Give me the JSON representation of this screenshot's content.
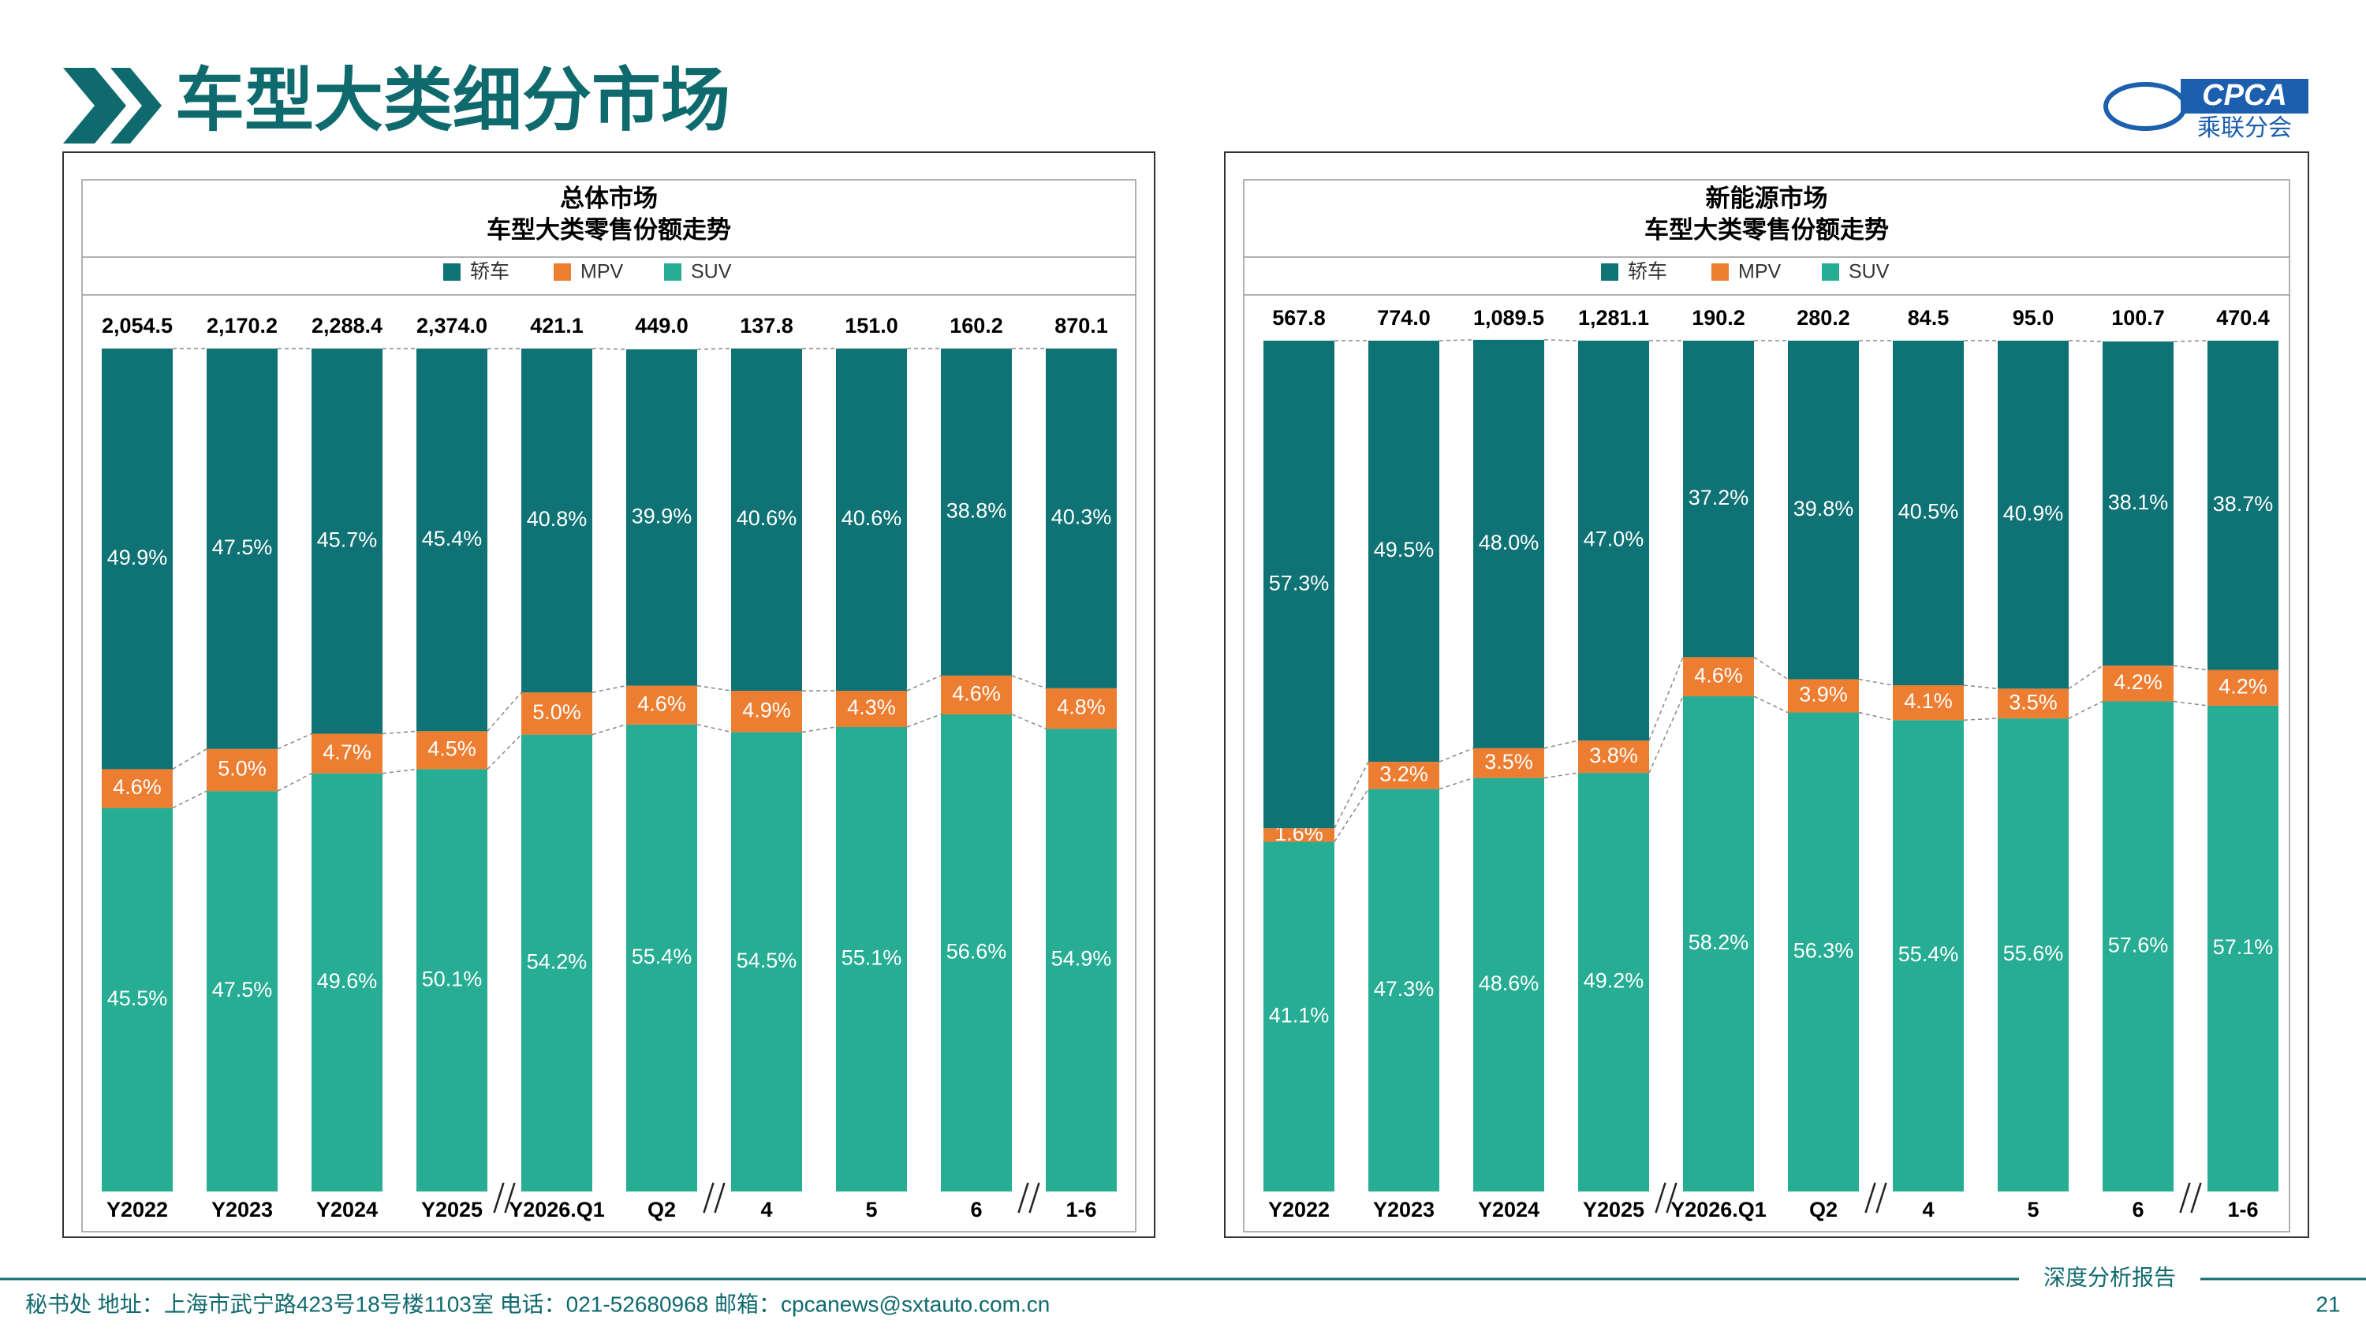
{
  "header": {
    "title": "车型大类细分市场",
    "logo": "CPCA",
    "logo_sub": "乘联分会"
  },
  "footer": {
    "text": "秘书处   地址：上海市武宁路423号18号楼1103室   电话：021-52680968   邮箱：cpcanews@sxtauto.com.cn",
    "tag": "深度分析报告",
    "page": "21"
  },
  "chart_data": [
    {
      "type": "stacked_bar_100",
      "title": "总体市场",
      "subtitle": "车型大类零售份额走势",
      "categories": [
        "Y2022",
        "Y2023",
        "Y2024",
        "Y2025",
        "Y2026.Q1",
        "Q2",
        "4",
        "5",
        "6",
        "1-6"
      ],
      "ylim": [
        0,
        100
      ],
      "totals": {
        "values": [
          2054.5,
          2170.2,
          2288.4,
          2374.0,
          421.1,
          449.0,
          137.8,
          151.0,
          160.2,
          870.1
        ],
        "value_labels": [
          "2,054.5",
          "2,170.2",
          "2,288.4",
          "2,374.0",
          "421.1",
          "449.0",
          "137.8",
          "151.0",
          "160.2",
          "870.1"
        ]
      },
      "series": [
        {
          "name": "轿车",
          "color": "#0f7274",
          "values": [
            49.9,
            47.5,
            45.7,
            45.4,
            40.8,
            39.9,
            40.6,
            40.6,
            38.8,
            40.3
          ],
          "value_labels": [
            "49.9%",
            "47.5%",
            "45.7%",
            "45.4%",
            "40.8%",
            "39.9%",
            "40.6%",
            "40.6%",
            "38.8%",
            "40.3%"
          ]
        },
        {
          "name": "MPV",
          "color": "#ed7d31",
          "values": [
            4.6,
            5.0,
            4.7,
            4.5,
            5.0,
            4.6,
            4.9,
            4.3,
            4.6,
            4.8
          ],
          "value_labels": [
            "4.6%",
            "5.0%",
            "4.7%",
            "4.5%",
            "5.0%",
            "4.6%",
            "4.9%",
            "4.3%",
            "4.6%",
            "4.8%"
          ]
        },
        {
          "name": "SUV",
          "color": "#27ad93",
          "values": [
            45.5,
            47.5,
            49.6,
            50.1,
            54.2,
            55.4,
            54.5,
            55.1,
            56.6,
            54.9
          ],
          "value_labels": [
            "45.5%",
            "47.5%",
            "49.6%",
            "50.1%",
            "54.2%",
            "55.4%",
            "54.5%",
            "55.1%",
            "56.6%",
            "54.9%"
          ]
        }
      ]
    },
    {
      "type": "stacked_bar_100",
      "title": "新能源市场",
      "subtitle": "车型大类零售份额走势",
      "categories": [
        "Y2022",
        "Y2023",
        "Y2024",
        "Y2025",
        "Y2026.Q1",
        "Q2",
        "4",
        "5",
        "6",
        "1-6"
      ],
      "ylim": [
        0,
        100
      ],
      "totals": {
        "values": [
          567.8,
          774.0,
          1089.5,
          1281.1,
          190.2,
          280.2,
          84.5,
          95.0,
          100.7,
          470.4
        ],
        "value_labels": [
          "567.8",
          "774.0",
          "1,089.5",
          "1,281.1",
          "190.2",
          "280.2",
          "84.5",
          "95.0",
          "100.7",
          "470.4"
        ]
      },
      "series": [
        {
          "name": "轿车",
          "color": "#0f7274",
          "values": [
            57.3,
            49.5,
            48.0,
            47.0,
            37.2,
            39.8,
            40.5,
            40.9,
            38.1,
            38.7
          ],
          "value_labels": [
            "57.3%",
            "49.5%",
            "48.0%",
            "47.0%",
            "37.2%",
            "39.8%",
            "40.5%",
            "40.9%",
            "38.1%",
            "38.7%"
          ]
        },
        {
          "name": "MPV",
          "color": "#ed7d31",
          "values": [
            1.6,
            3.2,
            3.5,
            3.8,
            4.6,
            3.9,
            4.1,
            3.5,
            4.2,
            4.2
          ],
          "value_labels": [
            "1.6%",
            "3.2%",
            "3.5%",
            "3.8%",
            "4.6%",
            "3.9%",
            "4.1%",
            "3.5%",
            "4.2%",
            "4.2%"
          ]
        },
        {
          "name": "SUV",
          "color": "#27ad93",
          "values": [
            41.1,
            47.3,
            48.6,
            49.2,
            58.2,
            56.3,
            55.4,
            55.6,
            57.6,
            57.1
          ],
          "value_labels": [
            "41.1%",
            "47.3%",
            "48.6%",
            "49.2%",
            "58.2%",
            "56.3%",
            "55.4%",
            "55.6%",
            "57.6%",
            "57.1%"
          ]
        }
      ]
    }
  ]
}
